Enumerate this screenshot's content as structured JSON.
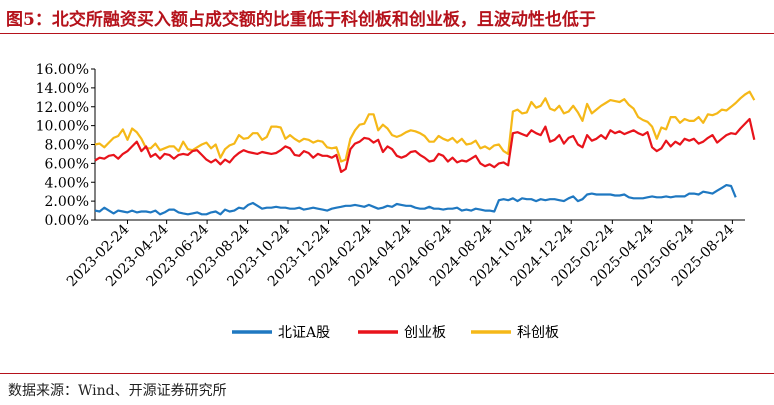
{
  "title": "图5：北交所融资买入额占成交额的比重低于科创板和创业板，且波动性也低于",
  "source": "数据来源：Wind、开源证券研究所",
  "colors": {
    "accent": "#b5121b"
  },
  "chart_data": {
    "type": "line",
    "title": "",
    "xlabel": "",
    "ylabel": "",
    "ylim": [
      0,
      16
    ],
    "yticks": [
      "0.00%",
      "2.00%",
      "4.00%",
      "6.00%",
      "8.00%",
      "10.00%",
      "12.00%",
      "14.00%",
      "16.00%"
    ],
    "xticks": [
      "2023-02-24",
      "2023-04-24",
      "2023-06-24",
      "2023-08-24",
      "2023-10-24",
      "2023-12-24",
      "2024-02-24",
      "2024-04-24",
      "2024-06-24",
      "2024-08-24",
      "2024-10-24",
      "2024-12-24",
      "2025-02-24",
      "2025-04-24",
      "2025-06-24",
      "2025-08-24"
    ],
    "grid": false,
    "legend": "bottom",
    "x_start": "2023-01-06",
    "x_step_days": 7,
    "series": [
      {
        "name": "北证A股",
        "color": "#1f78c1",
        "values": [
          1.0,
          0.9,
          1.3,
          1.0,
          0.7,
          1.0,
          0.9,
          0.8,
          1.0,
          0.8,
          0.9,
          0.9,
          0.8,
          1.0,
          0.6,
          0.8,
          1.1,
          1.1,
          0.8,
          0.7,
          0.6,
          0.7,
          0.8,
          0.6,
          0.6,
          0.8,
          0.9,
          0.6,
          1.1,
          0.9,
          1.0,
          1.3,
          1.2,
          1.6,
          1.8,
          1.5,
          1.2,
          1.3,
          1.3,
          1.4,
          1.3,
          1.3,
          1.2,
          1.2,
          1.3,
          1.1,
          1.2,
          1.3,
          1.2,
          1.1,
          1.0,
          1.2,
          1.3,
          1.4,
          1.5,
          1.5,
          1.6,
          1.5,
          1.4,
          1.6,
          1.4,
          1.2,
          1.3,
          1.5,
          1.4,
          1.7,
          1.6,
          1.5,
          1.5,
          1.3,
          1.2,
          1.2,
          1.4,
          1.2,
          1.2,
          1.1,
          1.2,
          1.2,
          1.3,
          1.0,
          1.1,
          1.0,
          1.2,
          1.1,
          1.0,
          1.0,
          0.9,
          2.1,
          2.2,
          2.1,
          2.3,
          2.0,
          2.3,
          2.2,
          2.2,
          2.0,
          2.2,
          2.1,
          2.2,
          2.2,
          2.1,
          2.0,
          2.3,
          2.5,
          2.0,
          2.2,
          2.7,
          2.8,
          2.7,
          2.7,
          2.7,
          2.7,
          2.6,
          2.6,
          2.7,
          2.4,
          2.3,
          2.3,
          2.3,
          2.4,
          2.5,
          2.4,
          2.4,
          2.5,
          2.4,
          2.5,
          2.5,
          2.5,
          2.8,
          2.8,
          2.7,
          3.0,
          2.9,
          2.8,
          3.1,
          3.4,
          3.7,
          3.6,
          2.4
        ]
      },
      {
        "name": "创业板",
        "color": "#e8131b",
        "values": [
          6.3,
          6.6,
          6.5,
          6.8,
          6.9,
          6.5,
          7.0,
          7.3,
          7.8,
          8.3,
          7.3,
          7.8,
          6.7,
          7.0,
          6.5,
          7.0,
          6.9,
          6.5,
          6.9,
          7.0,
          6.9,
          7.3,
          7.4,
          6.9,
          6.4,
          6.1,
          6.4,
          5.9,
          6.4,
          6.1,
          6.7,
          7.1,
          7.4,
          7.2,
          7.1,
          7.0,
          7.2,
          7.1,
          7.0,
          7.1,
          7.4,
          7.8,
          7.6,
          6.9,
          6.8,
          7.3,
          7.1,
          6.6,
          7.0,
          6.8,
          6.8,
          6.6,
          6.9,
          5.1,
          5.4,
          7.5,
          8.1,
          8.3,
          8.7,
          8.6,
          8.2,
          8.5,
          7.2,
          7.8,
          7.5,
          6.8,
          6.6,
          6.8,
          7.2,
          7.3,
          6.9,
          6.6,
          6.2,
          6.3,
          7.0,
          6.8,
          6.2,
          6.6,
          6.1,
          6.3,
          6.2,
          6.5,
          6.8,
          6.0,
          5.7,
          5.9,
          5.6,
          6.0,
          6.1,
          5.8,
          9.2,
          9.3,
          9.1,
          8.9,
          9.5,
          9.2,
          9.0,
          9.9,
          8.3,
          8.5,
          9.0,
          8.1,
          8.7,
          8.9,
          8.0,
          7.7,
          9.0,
          8.4,
          8.6,
          9.0,
          8.6,
          9.5,
          9.2,
          9.4,
          9.1,
          9.3,
          9.5,
          9.2,
          9.0,
          9.3,
          7.7,
          7.3,
          7.6,
          8.4,
          7.8,
          8.3,
          8.0,
          8.6,
          8.4,
          8.6,
          8.1,
          8.3,
          8.7,
          9.0,
          8.2,
          8.6,
          9.0,
          9.2,
          9.1,
          9.7,
          10.2,
          10.7,
          8.5
        ]
      },
      {
        "name": "科创板",
        "color": "#f5b818",
        "values": [
          8.0,
          8.1,
          7.7,
          8.2,
          8.7,
          8.9,
          9.6,
          8.5,
          9.7,
          9.3,
          8.6,
          7.6,
          7.6,
          8.1,
          7.4,
          7.6,
          7.8,
          7.8,
          7.3,
          8.3,
          7.5,
          7.4,
          7.7,
          8.0,
          8.2,
          7.6,
          8.0,
          6.6,
          7.5,
          7.9,
          8.1,
          9.0,
          8.6,
          8.7,
          9.2,
          9.2,
          8.5,
          8.8,
          9.9,
          9.9,
          9.8,
          8.6,
          9.0,
          8.6,
          8.3,
          8.6,
          8.5,
          8.2,
          8.4,
          8.3,
          7.7,
          7.6,
          7.7,
          6.2,
          6.4,
          8.6,
          9.5,
          10.1,
          10.2,
          11.2,
          11.2,
          9.5,
          10.1,
          9.7,
          9.0,
          8.8,
          9.0,
          9.3,
          9.5,
          9.4,
          9.2,
          8.9,
          8.3,
          8.3,
          8.9,
          8.6,
          8.4,
          8.7,
          8.2,
          8.6,
          8.0,
          8.1,
          8.4,
          7.6,
          7.8,
          7.5,
          7.9,
          8.0,
          7.3,
          7.0,
          11.5,
          11.7,
          11.3,
          11.4,
          12.5,
          11.9,
          12.1,
          12.9,
          11.8,
          11.6,
          12.1,
          11.3,
          11.5,
          12.1,
          11.4,
          10.5,
          12.3,
          11.3,
          11.7,
          12.1,
          12.4,
          12.7,
          12.6,
          12.5,
          12.8,
          12.2,
          11.8,
          10.9,
          10.6,
          10.4,
          9.9,
          8.6,
          9.8,
          9.6,
          10.9,
          10.9,
          10.3,
          10.7,
          10.5,
          10.5,
          10.9,
          10.3,
          11.2,
          11.1,
          11.3,
          11.7,
          11.6,
          12.0,
          12.4,
          12.9,
          13.3,
          13.6,
          12.7
        ]
      }
    ]
  }
}
